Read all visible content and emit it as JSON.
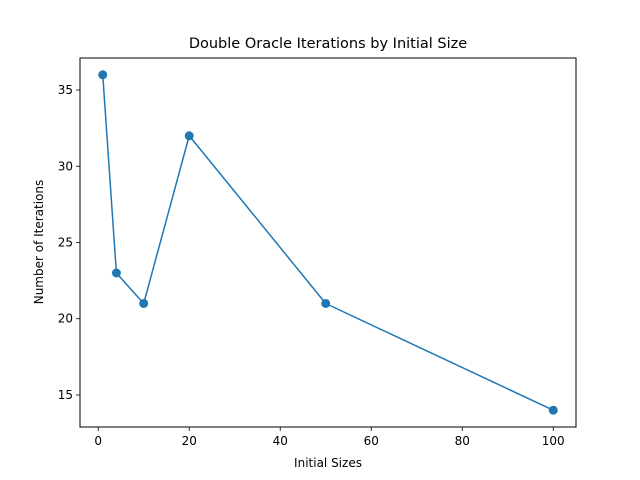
{
  "chart_data": {
    "type": "line",
    "title": "Double Oracle Iterations by Initial Size",
    "xlabel": "Initial Sizes",
    "ylabel": "Number of Iterations",
    "xlim": [
      -4.0,
      105.0
    ],
    "ylim": [
      12.9,
      37.1
    ],
    "xticks": [
      0,
      20,
      40,
      60,
      80,
      100
    ],
    "yticks": [
      15,
      20,
      25,
      30,
      35
    ],
    "grid": false,
    "series": [
      {
        "x": [
          1,
          4,
          10,
          20,
          50,
          100
        ],
        "values": [
          36,
          23,
          21,
          32,
          21,
          14
        ],
        "color": "#1f77b4",
        "marker": "circle"
      }
    ]
  }
}
